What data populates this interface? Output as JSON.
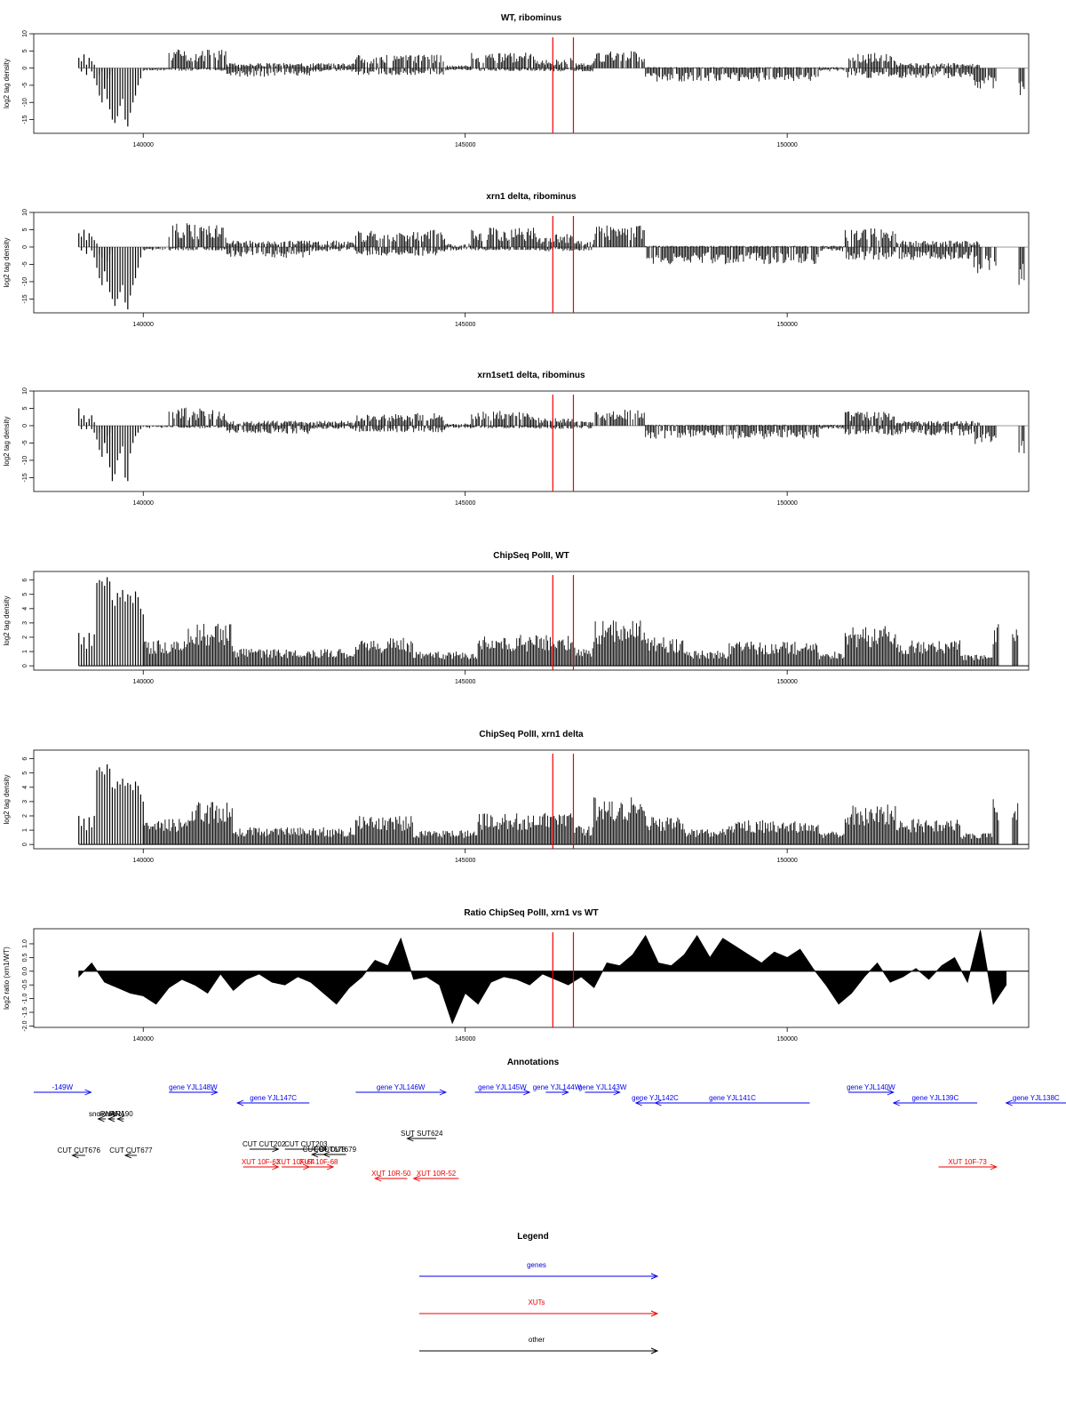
{
  "chart_data": [
    {
      "type": "bar",
      "title": "WT, ribominus",
      "ylabel": "log2 tag density",
      "xlim": [
        138300,
        153750
      ],
      "ylim": [
        -19,
        10
      ],
      "yticks": [
        10,
        5,
        0,
        -5,
        -10,
        -15
      ],
      "ytick_labels": [
        "10",
        "5",
        "0",
        "-5",
        "-10",
        "-15"
      ],
      "xticks": [
        140000,
        145000,
        150000
      ],
      "xtick_labels": [
        "140000",
        "145000",
        "150000"
      ],
      "markers": [
        146360,
        146680
      ],
      "bins_step": 40,
      "x": [
        139000,
        139040,
        139080,
        139120,
        139160,
        139200,
        139240,
        139280,
        139320,
        139360,
        139400,
        139440,
        139480,
        139520,
        139560,
        139600,
        139640,
        139680,
        139720,
        139760,
        139800,
        139840,
        139880,
        139920,
        139960,
        140000
      ],
      "series": [
        {
          "values": [
            3,
            2,
            4,
            1,
            3,
            2,
            1,
            0,
            -2,
            -1,
            -6,
            -9,
            -12,
            -15,
            -16,
            -14,
            -11,
            -9,
            -15,
            -17,
            -13,
            -10,
            -8,
            -5,
            -3,
            0
          ]
        },
        {
          "values": [
            0,
            -1,
            0,
            -2,
            0,
            -1,
            -3,
            -5,
            -8,
            -10,
            -6,
            -3,
            -2,
            -1,
            0,
            0,
            0,
            0,
            0,
            0,
            0,
            0,
            0,
            0,
            0,
            0
          ]
        }
      ]
    },
    {
      "type": "bar",
      "title": "xrn1 delta, ribominus",
      "ylabel": "log2 tag density",
      "xlim": [
        138300,
        153750
      ],
      "ylim": [
        -19,
        10
      ],
      "yticks": [
        10,
        5,
        0,
        -5,
        -10,
        -15
      ],
      "ytick_labels": [
        "10",
        "5",
        "0",
        "-5",
        "-10",
        "-15"
      ],
      "xticks": [
        140000,
        145000,
        150000
      ],
      "xtick_labels": [
        "140000",
        "145000",
        "150000"
      ],
      "markers": [
        146360,
        146680
      ],
      "bins_step": 40,
      "x": [
        139000,
        139040,
        139080,
        139120,
        139160,
        139200,
        139240,
        139280,
        139320,
        139360,
        139400,
        139440,
        139480,
        139520,
        139560,
        139600,
        139640,
        139680,
        139720,
        139760,
        139800,
        139840,
        139880,
        139920,
        139960,
        140000
      ],
      "series": [
        {
          "values": [
            4,
            3,
            5,
            2,
            4,
            3,
            2,
            1,
            -2,
            -3,
            -7,
            -10,
            -13,
            -15,
            -17,
            -15,
            -13,
            -11,
            -16,
            -18,
            -14,
            -11,
            -9,
            -6,
            -3,
            0
          ]
        },
        {
          "values": [
            0,
            -1,
            0,
            -2,
            0,
            -1,
            -3,
            -6,
            -9,
            -11,
            -7,
            -4,
            -2,
            -1,
            0,
            0,
            0,
            0,
            0,
            0,
            0,
            0,
            0,
            0,
            0,
            0
          ]
        }
      ]
    },
    {
      "type": "bar",
      "title": "xrn1set1 delta, ribominus",
      "ylabel": "log2 tag density",
      "xlim": [
        138300,
        153750
      ],
      "ylim": [
        -19,
        10
      ],
      "yticks": [
        10,
        5,
        0,
        -5,
        -10,
        -15
      ],
      "ytick_labels": [
        "10",
        "5",
        "0",
        "-5",
        "-10",
        "-15"
      ],
      "xticks": [
        140000,
        145000,
        150000
      ],
      "xtick_labels": [
        "140000",
        "145000",
        "150000"
      ],
      "markers": [
        146360,
        146680
      ],
      "bins_step": 40,
      "x": [
        139000,
        139040,
        139080,
        139120,
        139160,
        139200,
        139240,
        139280,
        139320,
        139360,
        139400,
        139440,
        139480,
        139520,
        139560,
        139600,
        139640,
        139680,
        139720,
        139760,
        139800,
        139840,
        139880,
        139920,
        139960,
        140000
      ],
      "series": [
        {
          "values": [
            5,
            2,
            3,
            1,
            2,
            3,
            1,
            0,
            -2,
            -1,
            -5,
            -8,
            -12,
            -16,
            -14,
            -10,
            -8,
            -6,
            -15,
            -16,
            -8,
            -5,
            -3,
            -2,
            -1,
            0
          ]
        },
        {
          "values": [
            0,
            -1,
            0,
            -1,
            0,
            -1,
            -2,
            -4,
            -7,
            -9,
            -5,
            -3,
            -2,
            -1,
            0,
            0,
            0,
            0,
            0,
            0,
            0,
            0,
            0,
            0,
            0,
            0
          ]
        }
      ]
    },
    {
      "type": "bar",
      "title": "ChipSeq PolII, WT",
      "ylabel": "log2 tag density",
      "xlim": [
        138300,
        153750
      ],
      "ylim": [
        -0.3,
        6.6
      ],
      "yticks": [
        0,
        1,
        2,
        3,
        4,
        5,
        6
      ],
      "ytick_labels": [
        "0",
        "1",
        "2",
        "3",
        "4",
        "5",
        "6"
      ],
      "xticks": [
        140000,
        145000,
        150000
      ],
      "xtick_labels": [
        "140000",
        "145000",
        "150000"
      ],
      "markers": [
        146360,
        146680
      ],
      "bins_step": 40,
      "x": [
        139000,
        139040,
        139080,
        139120,
        139160,
        139200,
        139240,
        139280,
        139320,
        139360,
        139400,
        139440,
        139480,
        139520,
        139560,
        139600,
        139640,
        139680,
        139720,
        139760,
        139800,
        139840,
        139880,
        139920,
        139960,
        140000
      ],
      "series": [
        {
          "values": [
            2.3,
            1.5,
            2.0,
            1.2,
            2.3,
            1.4,
            2.2,
            5.8,
            6.0,
            5.9,
            5.6,
            6.2,
            5.9,
            4.6,
            4.2,
            5.1,
            4.8,
            5.3,
            4.5,
            5.0,
            4.9,
            4.4,
            5.2,
            4.8,
            4.0,
            3.6
          ]
        }
      ]
    },
    {
      "type": "bar",
      "title": "ChipSeq PolII, xrn1 delta",
      "ylabel": "log2 tag density",
      "xlim": [
        138300,
        153750
      ],
      "ylim": [
        -0.3,
        6.6
      ],
      "yticks": [
        0,
        1,
        2,
        3,
        4,
        5,
        6
      ],
      "ytick_labels": [
        "0",
        "1",
        "2",
        "3",
        "4",
        "5",
        "6"
      ],
      "xticks": [
        140000,
        145000,
        150000
      ],
      "xtick_labels": [
        "140000",
        "145000",
        "150000"
      ],
      "markers": [
        146360,
        146680
      ],
      "bins_step": 40,
      "x": [
        139000,
        139040,
        139080,
        139120,
        139160,
        139200,
        139240,
        139280,
        139320,
        139360,
        139400,
        139440,
        139480,
        139520,
        139560,
        139600,
        139640,
        139680,
        139720,
        139760,
        139800,
        139840,
        139880,
        139920,
        139960,
        140000
      ],
      "series": [
        {
          "values": [
            2.0,
            1.3,
            1.8,
            1.0,
            1.9,
            1.2,
            2.0,
            5.2,
            5.4,
            5.1,
            4.9,
            5.6,
            5.3,
            4.0,
            3.9,
            4.4,
            4.2,
            4.6,
            4.1,
            4.3,
            4.2,
            3.8,
            4.4,
            4.1,
            3.5,
            3.0
          ]
        }
      ]
    },
    {
      "type": "area",
      "title": "Ratio ChipSeq PolII, xrn1 vs WT",
      "ylabel": "log2 ratio (xrn1/WT)",
      "xlim": [
        138300,
        153750
      ],
      "ylim": [
        -2.05,
        1.55
      ],
      "yticks": [
        1.0,
        0.5,
        0.0,
        -0.5,
        -1.0,
        -1.5,
        -2.0
      ],
      "ytick_labels": [
        "1.0",
        "0.5",
        "0.0",
        "-0.5",
        "-1.0",
        "-1.5",
        "-2.0"
      ],
      "xticks": [
        140000,
        145000,
        150000
      ],
      "xtick_labels": [
        "140000",
        "145000",
        "150000"
      ],
      "markers": [
        146360,
        146680
      ],
      "x": [
        139000,
        139200,
        139400,
        139600,
        139800,
        140000,
        140200,
        140400,
        140600,
        140800,
        141000,
        141200,
        141400,
        141600,
        141800,
        142000,
        142200,
        142400,
        142600,
        142800,
        143000,
        143200,
        143400,
        143600,
        143800,
        144000,
        144200,
        144400,
        144600,
        144800,
        145000,
        145200,
        145400,
        145600,
        145800,
        146000,
        146200,
        146400,
        146600,
        146800,
        147000,
        147200,
        147400,
        147600,
        147800,
        148000,
        148200,
        148400,
        148600,
        148800,
        149000,
        149200,
        149400,
        149600,
        149800,
        150000,
        150200,
        150400,
        150600,
        150800,
        151000,
        151200,
        151400,
        151600,
        151800,
        152000,
        152200,
        152400,
        152600,
        152800,
        153000,
        153200,
        153400
      ],
      "series": [
        {
          "name": "",
          "values": [
            -0.2,
            0.3,
            -0.4,
            -0.6,
            -0.8,
            -0.9,
            -1.2,
            -0.6,
            -0.3,
            -0.5,
            -0.8,
            -0.1,
            -0.7,
            -0.3,
            -0.1,
            -0.4,
            -0.5,
            -0.2,
            -0.4,
            -0.8,
            -1.2,
            -0.6,
            -0.2,
            0.4,
            0.2,
            1.2,
            -0.3,
            -0.2,
            -0.5,
            -1.9,
            -0.8,
            -1.2,
            -0.4,
            -0.2,
            -0.3,
            -0.5,
            -0.1,
            -0.3,
            -0.5,
            -0.2,
            -0.6,
            0.3,
            0.2,
            0.6,
            1.3,
            0.3,
            0.2,
            0.6,
            1.3,
            0.5,
            1.2,
            0.9,
            0.6,
            0.3,
            0.7,
            0.5,
            0.8,
            0.1,
            -0.5,
            -1.2,
            -0.8,
            -0.2,
            0.3,
            -0.4,
            -0.2,
            0.1,
            -0.3,
            0.2,
            0.5,
            -0.4,
            1.5,
            -1.2,
            -0.5
          ]
        }
      ]
    }
  ],
  "annotations": {
    "title": "Annotations",
    "features": [
      {
        "label": "-149W",
        "start": 138300,
        "end": 139190,
        "strand": "+",
        "row": 0,
        "kind": "gene"
      },
      {
        "label": "gene YJL148W",
        "start": 140400,
        "end": 141150,
        "strand": "+",
        "row": 0,
        "kind": "gene"
      },
      {
        "label": "gene YJL147C",
        "start": 141460,
        "end": 142580,
        "strand": "-",
        "row": 1,
        "kind": "gene"
      },
      {
        "label": "gene YJL146W",
        "start": 143300,
        "end": 144700,
        "strand": "+",
        "row": 0,
        "kind": "gene"
      },
      {
        "label": "gene YJL145W",
        "start": 145150,
        "end": 146000,
        "strand": "+",
        "row": 0,
        "kind": "gene"
      },
      {
        "label": "gene YJL144W",
        "start": 146250,
        "end": 146600,
        "strand": "+",
        "row": 0,
        "kind": "gene"
      },
      {
        "label": "gene YJL143W",
        "start": 146860,
        "end": 147400,
        "strand": "+",
        "row": 0,
        "kind": "gene"
      },
      {
        "label": "gene YJL142C",
        "start": 147650,
        "end": 148250,
        "strand": "-",
        "row": 1,
        "kind": "gene"
      },
      {
        "label": "gene YJL141C",
        "start": 147950,
        "end": 150350,
        "strand": "-",
        "row": 1,
        "kind": "gene"
      },
      {
        "label": "gene YJL140W",
        "start": 150950,
        "end": 151650,
        "strand": "+",
        "row": 0,
        "kind": "gene"
      },
      {
        "label": "gene YJL139C",
        "start": 151650,
        "end": 152950,
        "strand": "-",
        "row": 1,
        "kind": "gene"
      },
      {
        "label": "gene YJL138C",
        "start": 153400,
        "end": 154600,
        "strand": "-",
        "row": 1,
        "kind": "gene"
      },
      {
        "label": "snoRNA",
        "start": 139300,
        "end": 139420,
        "strand": "-",
        "row": 2,
        "kind": "other"
      },
      {
        "label": "snoRNA",
        "start": 139460,
        "end": 139560,
        "strand": "-",
        "row": 2,
        "kind": "other"
      },
      {
        "label": "snR190",
        "start": 139600,
        "end": 139700,
        "strand": "-",
        "row": 2,
        "kind": "other"
      },
      {
        "label": "SUT SUT624",
        "start": 144100,
        "end": 144550,
        "strand": "-",
        "row": 3,
        "kind": "other"
      },
      {
        "label": "CUT CUT202",
        "start": 141650,
        "end": 142100,
        "strand": "+",
        "row": 4,
        "kind": "other"
      },
      {
        "label": "CUT CUT203",
        "start": 142200,
        "end": 142850,
        "strand": "+",
        "row": 4,
        "kind": "other"
      },
      {
        "label": "CUT CUT678",
        "start": 142620,
        "end": 143000,
        "strand": "-",
        "row": 5,
        "kind": "other"
      },
      {
        "label": "CUT CUT679",
        "start": 142800,
        "end": 143150,
        "strand": "-",
        "row": 5,
        "kind": "other"
      },
      {
        "label": "CUT CUT676",
        "start": 138900,
        "end": 139100,
        "strand": "-",
        "row": 6,
        "kind": "other"
      },
      {
        "label": "CUT CUT677",
        "start": 139720,
        "end": 139900,
        "strand": "-",
        "row": 6,
        "kind": "other"
      },
      {
        "label": "XUT 10F-63",
        "start": 141550,
        "end": 142100,
        "strand": "+",
        "row": 7,
        "kind": "xut"
      },
      {
        "label": "XUT 10F-64",
        "start": 142150,
        "end": 142580,
        "strand": "+",
        "row": 7,
        "kind": "xut"
      },
      {
        "label": "XUT 10F-68",
        "start": 142500,
        "end": 142950,
        "strand": "+",
        "row": 7,
        "kind": "xut"
      },
      {
        "label": "XUT 10R-50",
        "start": 143600,
        "end": 144100,
        "strand": "-",
        "row": 8,
        "kind": "xut"
      },
      {
        "label": "XUT 10R-52",
        "start": 144200,
        "end": 144900,
        "strand": "-",
        "row": 8,
        "kind": "xut"
      },
      {
        "label": "XUT 10F-73",
        "start": 152350,
        "end": 153250,
        "strand": "+",
        "row": 7,
        "kind": "xut"
      }
    ]
  },
  "legend": {
    "title": "Legend",
    "items": [
      {
        "label": "genes",
        "kind": "gene"
      },
      {
        "label": "XUTs",
        "kind": "xut"
      },
      {
        "label": "other",
        "kind": "other"
      }
    ]
  },
  "colors": {
    "gene": "#0000ee",
    "xut": "#ee0000",
    "other": "#000000",
    "marker": "#ee0000",
    "bar": "#000000",
    "baseline": "#999999"
  }
}
